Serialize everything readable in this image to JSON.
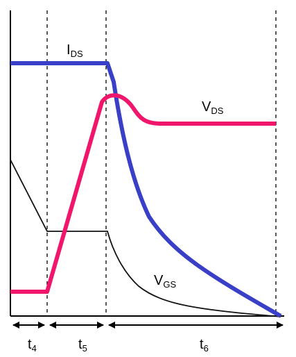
{
  "labels": {
    "ids": {
      "main": "I",
      "sub": "DS"
    },
    "vds": {
      "main": "V",
      "sub": "DS"
    },
    "vgs": {
      "main": "V",
      "sub": "GS"
    },
    "t4": {
      "main": "t",
      "sub": "4"
    },
    "t5": {
      "main": "t",
      "sub": "5"
    },
    "t6": {
      "main": "t",
      "sub": "6"
    }
  },
  "colors": {
    "ids": "#3a3fc8",
    "vds": "#f0166c",
    "vgs": "#111111",
    "axis": "#000000"
  }
}
